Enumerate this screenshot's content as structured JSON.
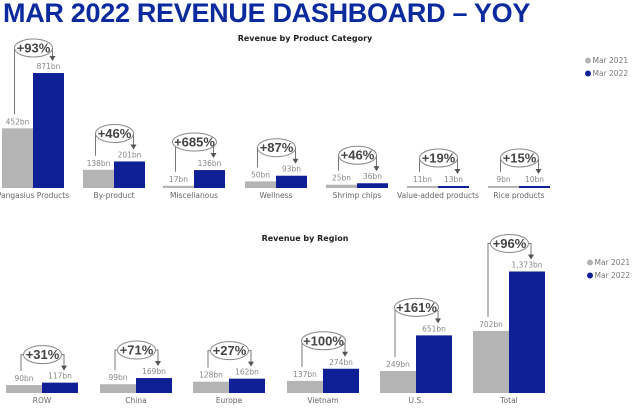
{
  "page": {
    "title": "MAR 2022 REVENUE DASHBOARD – YOY"
  },
  "colors": {
    "mar2021": "#b4b4b4",
    "mar2022": "#0f1f96",
    "title": "#0a2a9e"
  },
  "chart_data": [
    {
      "type": "bar",
      "title": "Revenue by Product Category",
      "categories": [
        "Pangasius Products",
        "By-product",
        "Miscellanous",
        "Wellness",
        "Shrimp chips",
        "Value-added products",
        "Rice products"
      ],
      "series": [
        {
          "name": "Mar 2021",
          "values": [
            452,
            138,
            17,
            50,
            25,
            11,
            9
          ],
          "labels": [
            "452bn",
            "138bn",
            "17bn",
            "50bn",
            "25bn",
            "11bn",
            "9bn"
          ]
        },
        {
          "name": "Mar 2022",
          "values": [
            871,
            201,
            136,
            93,
            36,
            13,
            10
          ],
          "labels": [
            "871bn",
            "201bn",
            "136bn",
            "93bn",
            "36bn",
            "13bn",
            "10bn"
          ]
        }
      ],
      "growth": [
        "+93%",
        "+46%",
        "+685%",
        "+87%",
        "+46%",
        "+19%",
        "+15%"
      ],
      "unit": "bn",
      "legend": [
        "Mar 2021",
        "Mar 2022"
      ],
      "legend_position": "top-right",
      "grid": false
    },
    {
      "type": "bar",
      "title": "Revenue by Region",
      "categories": [
        "ROW",
        "China",
        "Europe",
        "Vietnam",
        "U.S.",
        "Total"
      ],
      "series": [
        {
          "name": "Mar 2021",
          "values": [
            90,
            99,
            128,
            137,
            249,
            702
          ],
          "labels": [
            "90bn",
            "99bn",
            "128bn",
            "137bn",
            "249bn",
            "702bn"
          ]
        },
        {
          "name": "Mar 2022",
          "values": [
            117,
            169,
            162,
            274,
            651,
            1373
          ],
          "labels": [
            "117bn",
            "169bn",
            "162bn",
            "274bn",
            "651bn",
            "1,373bn"
          ]
        }
      ],
      "growth": [
        "+31%",
        "+71%",
        "+27%",
        "+100%",
        "+161%",
        "+96%"
      ],
      "unit": "bn",
      "legend": [
        "Mar 2021",
        "Mar 2022"
      ],
      "legend_position": "top-right",
      "grid": false
    }
  ]
}
